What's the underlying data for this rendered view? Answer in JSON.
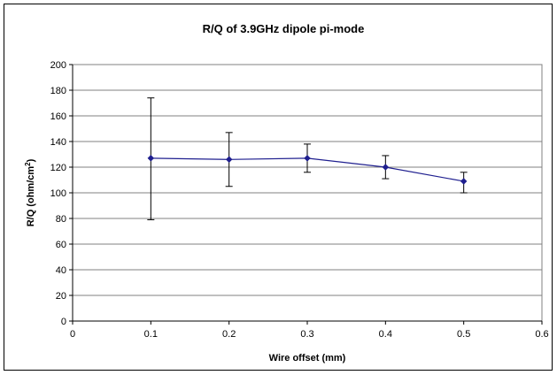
{
  "chart_data": {
    "type": "line",
    "title": "R/Q of 3.9GHz dipole pi-mode",
    "xlabel": "Wire offset (mm)",
    "ylabel": "R/Q (ohm/cm",
    "ylabel_superscript": "2",
    "ylabel_suffix": ")",
    "xlim": [
      0,
      0.6
    ],
    "ylim": [
      0,
      200
    ],
    "xticks": [
      0,
      0.1,
      0.2,
      0.3,
      0.4,
      0.5,
      0.6
    ],
    "xtick_labels": [
      "0",
      "0.1",
      "0.2",
      "0.3",
      "0.4",
      "0.5",
      "0.6"
    ],
    "yticks": [
      0,
      20,
      40,
      60,
      80,
      100,
      120,
      140,
      160,
      180,
      200
    ],
    "ytick_labels": [
      "0",
      "20",
      "40",
      "60",
      "80",
      "100",
      "120",
      "140",
      "160",
      "180",
      "200"
    ],
    "grid": "horizontal",
    "legend": "none",
    "series": [
      {
        "x": [
          0.1,
          0.2,
          0.3,
          0.4,
          0.5
        ],
        "y": [
          127,
          126,
          127,
          120,
          109
        ],
        "error_low": [
          79,
          105,
          116,
          111,
          100
        ],
        "error_high": [
          174,
          147,
          138,
          129,
          116
        ],
        "color": "#1f1f8f",
        "marker": "diamond"
      }
    ]
  }
}
